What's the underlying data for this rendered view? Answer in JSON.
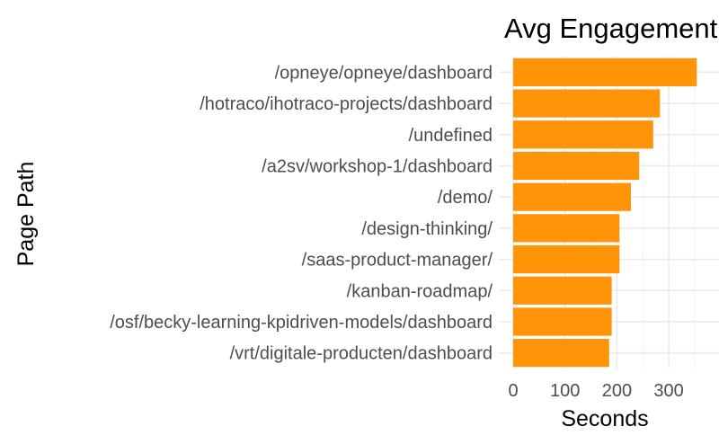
{
  "chart_data": {
    "type": "bar",
    "orientation": "horizontal",
    "title": "Avg Engagement",
    "xlabel": "Seconds",
    "ylabel": "Page Path",
    "categories": [
      "/opneye/opneye/dashboard",
      "/hotraco/ihotraco-projects/dashboard",
      "/undefined",
      "/a2sv/workshop-1/dashboard",
      "/demo/",
      "/design-thinking/",
      "/saas-product-manager/",
      "/kanban-roadmap/",
      "/osf/becky-learning-kpidriven-models/dashboard",
      "/vrt/digitale-producten/dashboard"
    ],
    "values": [
      354,
      283,
      270,
      243,
      227,
      205,
      205,
      190,
      190,
      185
    ],
    "xlim": [
      0,
      365
    ],
    "xticks": [
      0,
      100,
      200,
      300
    ],
    "grid": true,
    "bar_color": "#ff9408",
    "legend": "none"
  }
}
